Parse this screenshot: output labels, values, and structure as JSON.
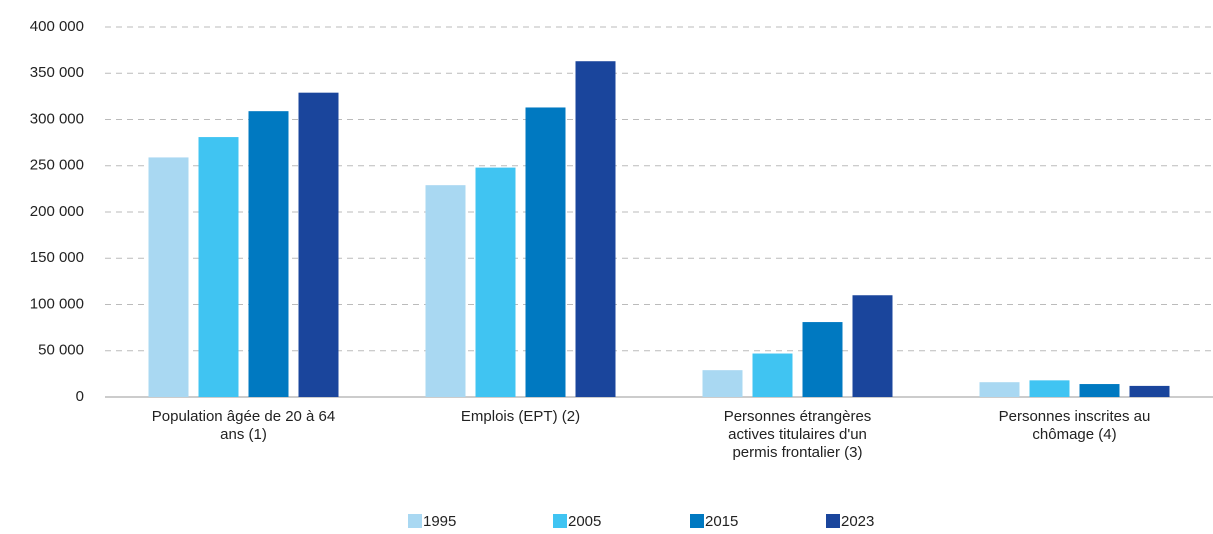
{
  "chart_data": {
    "type": "bar",
    "categories": [
      "Population âgée de 20 à 64 ans (1)",
      "Emplois (EPT) (2)",
      "Personnes étrangères actives titulaires d'un permis frontalier (3)",
      "Personnes inscrites au chômage (4)"
    ],
    "series": [
      {
        "name": "1995",
        "color": "#a9d8f2",
        "values": [
          259000,
          229000,
          29000,
          16000
        ]
      },
      {
        "name": "2005",
        "color": "#40c4f2",
        "values": [
          281000,
          248000,
          47000,
          18000
        ]
      },
      {
        "name": "2015",
        "color": "#0079c1",
        "values": [
          309000,
          313000,
          81000,
          14000
        ]
      },
      {
        "name": "2023",
        "color": "#1a459c",
        "values": [
          329000,
          363000,
          110000,
          12000
        ]
      }
    ],
    "ylim": [
      0,
      400000
    ],
    "yticks": [
      0,
      {
        "value": 50000,
        "label": "50 000"
      },
      {
        "value": 100000,
        "label": "100 000"
      },
      {
        "value": 150000,
        "label": "150 000"
      },
      {
        "value": 200000,
        "label": "200 000"
      },
      {
        "value": 250000,
        "label": "250 000"
      },
      {
        "value": 300000,
        "label": "300 000"
      },
      {
        "value": 350000,
        "label": "350 000"
      },
      {
        "value": 400000,
        "label": "400 000"
      }
    ],
    "grid": true,
    "legend": "bottom"
  }
}
